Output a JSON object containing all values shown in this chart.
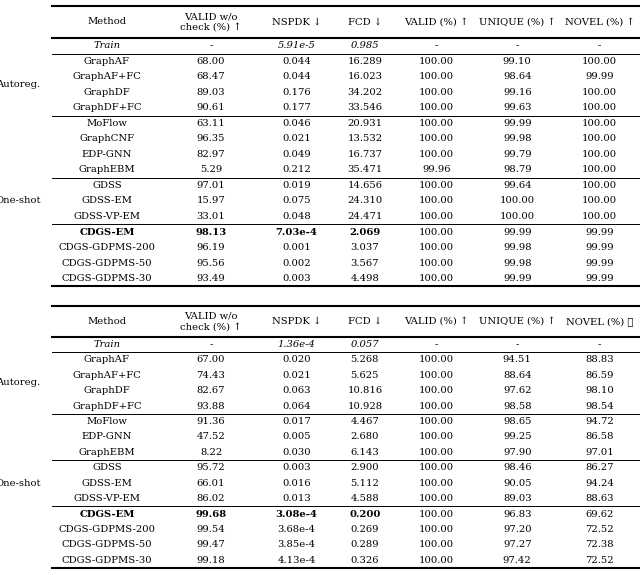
{
  "table1": {
    "header": [
      "Method",
      "VALID w/o\ncheck (%) ↑",
      "NSPDK ↓",
      "FCD ↓",
      "VALID (%) ↑",
      "UNIQUE (%) ↑",
      "NOVEL (%) ↑"
    ],
    "train_row": [
      "Train",
      "-",
      "5.91e-5",
      "0.985",
      "-",
      "-",
      "-"
    ],
    "train_italic": [
      true,
      true,
      true,
      true,
      true,
      true,
      true
    ],
    "groups": [
      {
        "label": "Autoreg.",
        "rows": [
          [
            "GraphAF",
            "68.00",
            "0.044",
            "16.289",
            "100.00",
            "99.10",
            "100.00"
          ],
          [
            "GraphAF+FC",
            "68.47",
            "0.044",
            "16.023",
            "100.00",
            "98.64",
            "99.99"
          ],
          [
            "GraphDF",
            "89.03",
            "0.176",
            "34.202",
            "100.00",
            "99.16",
            "100.00"
          ],
          [
            "GraphDF+FC",
            "90.61",
            "0.177",
            "33.546",
            "100.00",
            "99.63",
            "100.00"
          ]
        ]
      },
      {
        "label": "",
        "rows": [
          [
            "MoFlow",
            "63.11",
            "0.046",
            "20.931",
            "100.00",
            "99.99",
            "100.00"
          ],
          [
            "GraphCNF",
            "96.35",
            "0.021",
            "13.532",
            "100.00",
            "99.98",
            "100.00"
          ],
          [
            "EDP-GNN",
            "82.97",
            "0.049",
            "16.737",
            "100.00",
            "99.79",
            "100.00"
          ],
          [
            "GraphEBM",
            "5.29",
            "0.212",
            "35.471",
            "99.96",
            "98.79",
            "100.00"
          ]
        ]
      },
      {
        "label": "One-shot",
        "rows": [
          [
            "GDSS",
            "97.01",
            "0.019",
            "14.656",
            "100.00",
            "99.64",
            "100.00"
          ],
          [
            "GDSS-EM",
            "15.97",
            "0.075",
            "24.310",
            "100.00",
            "100.00",
            "100.00"
          ],
          [
            "GDSS-VP-EM",
            "33.01",
            "0.048",
            "24.471",
            "100.00",
            "100.00",
            "100.00"
          ]
        ]
      },
      {
        "label": "",
        "rows": [
          [
            "CDGS-EM",
            "98.13",
            "7.03e-4",
            "2.069",
            "100.00",
            "99.99",
            "99.99"
          ],
          [
            "CDGS-GDPMS-200",
            "96.19",
            "0.001",
            "3.037",
            "100.00",
            "99.98",
            "99.99"
          ],
          [
            "CDGS-GDPMS-50",
            "95.56",
            "0.002",
            "3.567",
            "100.00",
            "99.98",
            "99.99"
          ],
          [
            "CDGS-GDPMS-30",
            "93.49",
            "0.003",
            "4.498",
            "100.00",
            "99.99",
            "99.99"
          ]
        ]
      }
    ],
    "bold_cols": [
      0,
      1,
      2,
      3
    ],
    "bold_row_in_group": 0,
    "bold_group": 3
  },
  "table2": {
    "header": [
      "Method",
      "VALID w/o\ncheck (%) ↑",
      "NSPDK ↓",
      "FCD ↓",
      "VALID (%) ↑",
      "UNIQUE (%) ↑",
      "NOVEL (%) ★"
    ],
    "train_row": [
      "Train",
      "-",
      "1.36e-4",
      "0.057",
      "-",
      "-",
      "-"
    ],
    "train_italic": [
      true,
      true,
      true,
      true,
      true,
      true,
      true
    ],
    "groups": [
      {
        "label": "Autoreg.",
        "rows": [
          [
            "GraphAF",
            "67.00",
            "0.020",
            "5.268",
            "100.00",
            "94.51",
            "88.83"
          ],
          [
            "GraphAF+FC",
            "74.43",
            "0.021",
            "5.625",
            "100.00",
            "88.64",
            "86.59"
          ],
          [
            "GraphDF",
            "82.67",
            "0.063",
            "10.816",
            "100.00",
            "97.62",
            "98.10"
          ],
          [
            "GraphDF+FC",
            "93.88",
            "0.064",
            "10.928",
            "100.00",
            "98.58",
            "98.54"
          ]
        ]
      },
      {
        "label": "",
        "rows": [
          [
            "MoFlow",
            "91.36",
            "0.017",
            "4.467",
            "100.00",
            "98.65",
            "94.72"
          ],
          [
            "EDP-GNN",
            "47.52",
            "0.005",
            "2.680",
            "100.00",
            "99.25",
            "86.58"
          ],
          [
            "GraphEBM",
            "8.22",
            "0.030",
            "6.143",
            "100.00",
            "97.90",
            "97.01"
          ]
        ]
      },
      {
        "label": "One-shot",
        "rows": [
          [
            "GDSS",
            "95.72",
            "0.003",
            "2.900",
            "100.00",
            "98.46",
            "86.27"
          ],
          [
            "GDSS-EM",
            "66.01",
            "0.016",
            "5.112",
            "100.00",
            "90.05",
            "94.24"
          ],
          [
            "GDSS-VP-EM",
            "86.02",
            "0.013",
            "4.588",
            "100.00",
            "89.03",
            "88.63"
          ]
        ]
      },
      {
        "label": "",
        "rows": [
          [
            "CDGS-EM",
            "99.68",
            "3.08e-4",
            "0.200",
            "100.00",
            "96.83",
            "69.62"
          ],
          [
            "CDGS-GDPMS-200",
            "99.54",
            "3.68e-4",
            "0.269",
            "100.00",
            "97.20",
            "72.52"
          ],
          [
            "CDGS-GDPMS-50",
            "99.47",
            "3.85e-4",
            "0.289",
            "100.00",
            "97.27",
            "72.38"
          ],
          [
            "CDGS-GDPMS-30",
            "99.18",
            "4.13e-4",
            "0.326",
            "100.00",
            "97.42",
            "72.52"
          ]
        ]
      }
    ],
    "bold_cols": [
      0,
      1,
      2,
      3
    ],
    "bold_row_in_group": 0,
    "bold_group": 3
  },
  "font_size": 7.2,
  "label_font_size": 7.2
}
